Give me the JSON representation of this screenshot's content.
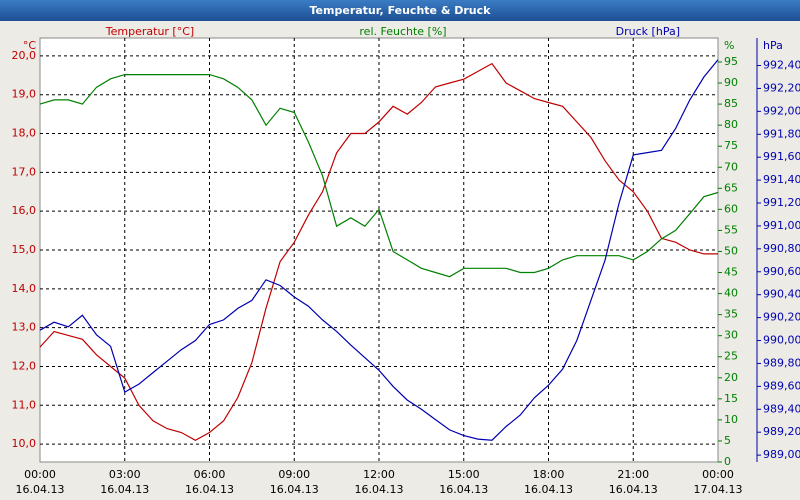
{
  "chart_data": {
    "type": "line",
    "title": "Temperatur, Feuchte & Druck",
    "x": [
      0,
      0.5,
      1,
      1.5,
      2,
      2.5,
      3,
      3.5,
      4,
      4.5,
      5,
      5.5,
      6,
      6.5,
      7,
      7.5,
      8,
      8.5,
      9,
      9.5,
      10,
      10.5,
      11,
      11.5,
      12,
      12.5,
      13,
      13.5,
      14,
      14.5,
      15,
      15.5,
      16,
      16.5,
      17,
      17.5,
      18,
      18.5,
      19,
      19.5,
      20,
      20.5,
      21,
      21.5,
      22,
      22.5,
      23,
      23.5,
      24
    ],
    "xlim": [
      0,
      24
    ],
    "xticks": [
      {
        "value": 0,
        "label": "00:00",
        "date": "16.04.13"
      },
      {
        "value": 3,
        "label": "03:00",
        "date": "16.04.13"
      },
      {
        "value": 6,
        "label": "06:00",
        "date": "16.04.13"
      },
      {
        "value": 9,
        "label": "09:00",
        "date": "16.04.13"
      },
      {
        "value": 12,
        "label": "12:00",
        "date": "16.04.13"
      },
      {
        "value": 15,
        "label": "15:00",
        "date": "16.04.13"
      },
      {
        "value": 18,
        "label": "18:00",
        "date": "16.04.13"
      },
      {
        "value": 21,
        "label": "21:00",
        "date": "16.04.13"
      },
      {
        "value": 24,
        "label": "00:00",
        "date": "17.04.13"
      }
    ],
    "ylabel": "Temperatur [°C]",
    "yunit": "°C",
    "ylim": [
      9.54,
      20.46
    ],
    "yticks": [
      {
        "value": 10,
        "label": "10,0"
      },
      {
        "value": 11,
        "label": "11,0"
      },
      {
        "value": 12,
        "label": "12,0"
      },
      {
        "value": 13,
        "label": "13,0"
      },
      {
        "value": 14,
        "label": "14,0"
      },
      {
        "value": 15,
        "label": "15,0"
      },
      {
        "value": 16,
        "label": "16,0"
      },
      {
        "value": 17,
        "label": "17,0"
      },
      {
        "value": 18,
        "label": "18,0"
      },
      {
        "value": 19,
        "label": "19,0"
      },
      {
        "value": 20,
        "label": "20,0"
      }
    ],
    "y2label": "rel. Feuchte [%]",
    "y2unit": "%",
    "y2lim": [
      0,
      100.7
    ],
    "y2ticks": [
      0,
      5,
      10,
      15,
      20,
      25,
      30,
      35,
      40,
      45,
      50,
      55,
      60,
      65,
      70,
      75,
      80,
      85,
      90,
      95
    ],
    "y3label": "Druck [hPa]",
    "y3unit": "hPa",
    "y3lim": [
      988.94,
      992.64
    ],
    "y3ticks": [
      {
        "value": 989.0,
        "label": "989,00"
      },
      {
        "value": 989.2,
        "label": "989,20"
      },
      {
        "value": 989.4,
        "label": "989,40"
      },
      {
        "value": 989.6,
        "label": "989,60"
      },
      {
        "value": 989.8,
        "label": "989,80"
      },
      {
        "value": 990.0,
        "label": "990,00"
      },
      {
        "value": 990.2,
        "label": "990,20"
      },
      {
        "value": 990.4,
        "label": "990,40"
      },
      {
        "value": 990.6,
        "label": "990,60"
      },
      {
        "value": 990.8,
        "label": "990,80"
      },
      {
        "value": 991.0,
        "label": "991,00"
      },
      {
        "value": 991.2,
        "label": "991,20"
      },
      {
        "value": 991.4,
        "label": "991,40"
      },
      {
        "value": 991.6,
        "label": "991,60"
      },
      {
        "value": 991.8,
        "label": "991,80"
      },
      {
        "value": 992.0,
        "label": "992,00"
      },
      {
        "value": 992.2,
        "label": "992,20"
      },
      {
        "value": 992.4,
        "label": "992,40"
      }
    ],
    "grid": true,
    "series": [
      {
        "name": "Temperatur",
        "color": "#c00000",
        "axis": "y",
        "values": [
          12.5,
          12.9,
          12.8,
          12.7,
          12.3,
          12.0,
          11.7,
          11.0,
          10.6,
          10.4,
          10.3,
          10.1,
          10.3,
          10.6,
          11.2,
          12.1,
          13.5,
          14.7,
          15.2,
          15.9,
          16.5,
          17.5,
          18.0,
          18.0,
          18.3,
          18.7,
          18.5,
          18.8,
          19.2,
          19.3,
          19.4,
          19.6,
          19.8,
          19.3,
          19.1,
          18.9,
          18.8,
          18.7,
          18.3,
          17.9,
          17.3,
          16.8,
          16.5,
          16.0,
          15.3,
          15.2,
          15.0,
          14.9,
          14.9
        ]
      },
      {
        "name": "rel. Feuchte",
        "color": "#008000",
        "axis": "y2",
        "values": [
          85,
          86,
          86,
          85,
          89,
          91,
          92,
          92,
          92,
          92,
          92,
          92,
          92,
          91,
          89,
          86,
          80,
          84,
          83,
          76,
          68,
          56,
          58,
          56,
          60,
          50,
          48,
          46,
          45,
          44,
          46,
          46,
          46,
          46,
          45,
          45,
          46,
          48,
          49,
          49,
          49,
          49,
          48,
          50,
          53,
          55,
          59,
          63,
          64
        ]
      },
      {
        "name": "Druck",
        "color": "#0000b0",
        "axis": "y3",
        "values": [
          990.09,
          990.16,
          990.12,
          990.22,
          990.05,
          989.95,
          989.55,
          989.62,
          989.72,
          989.82,
          989.92,
          990.0,
          990.14,
          990.18,
          990.28,
          990.35,
          990.53,
          990.48,
          990.38,
          990.3,
          990.18,
          990.08,
          989.96,
          989.85,
          989.74,
          989.6,
          989.48,
          989.4,
          989.31,
          989.22,
          989.17,
          989.14,
          989.13,
          989.25,
          989.35,
          989.5,
          989.61,
          989.75,
          990.0,
          990.35,
          990.7,
          991.2,
          991.62,
          991.64,
          991.66,
          991.85,
          992.1,
          992.3,
          992.45
        ]
      }
    ]
  }
}
